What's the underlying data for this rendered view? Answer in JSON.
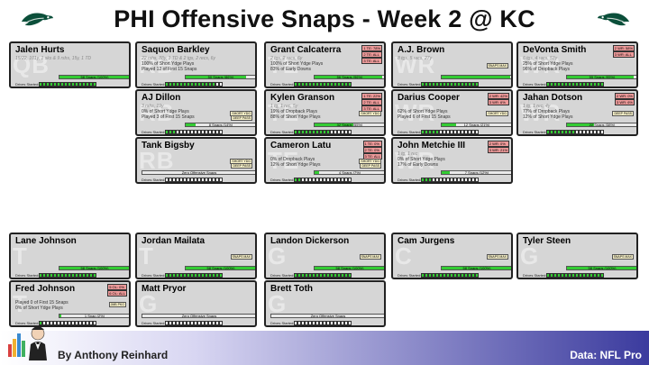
{
  "title": "PHI Offensive Snaps - Week 2 @ KC",
  "footer": {
    "author": "By Anthony Reinhard",
    "source": "Data: NFL Pro"
  },
  "colors": {
    "bar_fill": "#33cc33",
    "bar_fill_low": "#9be09b",
    "badge": "#ee9a9a",
    "card": "#d6d6d6",
    "footer_dark": "#3b3b9e"
  },
  "drives_label": "Drives Started:",
  "zero_label": "Zero Offensive Snaps",
  "players": [
    {
      "name": "Jalen Hurts",
      "pos": "QB",
      "sub": "15/22, 101y, 1 sks & 9 rshs, 15y, 1 TD",
      "stats": [],
      "snaps": "58 Snaps (100%)",
      "pct": 1.0,
      "drives_on": 16,
      "badges": [],
      "tags": []
    },
    {
      "name": "Saquon Barkley",
      "pos": "RB",
      "sub": "22 rshs, 88y, 1 TD & 2 tgs, 2 recs, 6y",
      "stats": [
        "100% of Short Ydge Plays",
        "Played 12 of First 15 Snaps"
      ],
      "snaps": "50 Snaps (86%)",
      "pct": 0.86,
      "drives_on": 14,
      "badges": [],
      "tags": []
    },
    {
      "name": "Grant Calcaterra",
      "pos": "TE",
      "sub": "2 tgs, 2 recs, 6y",
      "stats": [
        "100% of Short Ydge Plays",
        "83% of Early Downs"
      ],
      "snaps": "56 Snaps (96%)",
      "pct": 0.96,
      "drives_on": 16,
      "badges": [
        "1 TE: 78%",
        "2 TE: ALL",
        "3 TE: ALL"
      ],
      "tags": []
    },
    {
      "name": "A.J. Brown",
      "pos": "WR",
      "sub": "8 tgs, 5 recs, 27y",
      "stats": [],
      "snaps": "",
      "pct": 0.97,
      "drives_on": 16,
      "badges": [],
      "tags": [
        "SNAPS MAX"
      ]
    },
    {
      "name": "DeVonta Smith",
      "pos": "WR",
      "sub": "6 tgs, 4 recs, 53y",
      "stats": [
        "25% of Short Ydge Plays",
        "96% of Dropback Plays"
      ],
      "snaps": "55 Snaps (95%)",
      "pct": 0.95,
      "drives_on": 16,
      "badges": [
        "2 WR: 58%",
        "3 WR: ALL"
      ],
      "tags": []
    },
    {
      "name": "AJ Dillon",
      "pos": "RB",
      "sub": "3 rshs, 19y",
      "stats": [
        "0% of Short Ydge Plays",
        "Played 3 of First 15 Snaps"
      ],
      "snaps": "8 Snaps (14%)",
      "pct": 0.14,
      "drives_on": 3,
      "badges": [],
      "tags": [
        "SHORT YDG",
        "DEEP PASS"
      ]
    },
    {
      "name": "Kylen Granson",
      "pos": "TE",
      "sub": "1 tg, 1 rec, 5y",
      "stats": [
        "19% of Dropback Plays",
        "88% of Short Ydge Plays"
      ],
      "snaps": "32 Snaps (55%)",
      "pct": 0.55,
      "drives_on": 10,
      "badges": [
        "1 TE: 22%",
        "2 TE: ALL",
        "3 TE: ALL"
      ],
      "tags": [
        "SHORT YDG"
      ]
    },
    {
      "name": "Darius Cooper",
      "pos": "WR",
      "sub": "",
      "stats": [
        "62% of Short Ydge Plays",
        "Played 6 of First 15 Snaps"
      ],
      "snaps": "12 Snaps (21%)",
      "pct": 0.21,
      "drives_on": 5,
      "badges": [
        "2 WR: 42%",
        "3 WR: 6%"
      ],
      "tags": [
        "SHORT YDG"
      ]
    },
    {
      "name": "Jahan Dotson",
      "pos": "WR",
      "sub": "1 tg, 1 rec, 4y",
      "stats": [
        "77% of Dropback Plays",
        "12% of Short Ydge Plays"
      ],
      "snaps": "22 Snaps (38%)",
      "pct": 0.38,
      "drives_on": 8,
      "badges": [
        "2 WR: 0%",
        "3 WR: 6%"
      ],
      "tags": [
        "DEEP PASS"
      ]
    },
    {
      "name": "Tank Bigsby",
      "pos": "RB",
      "sub": "",
      "stats": [],
      "snaps": "Zero Offensive Snaps",
      "pct": 0.0,
      "drives_on": 0,
      "badges": [],
      "tags": [
        "SHORT YDG",
        "DEEP PASS"
      ]
    },
    {
      "name": "Cameron Latu",
      "pos": "TE",
      "sub": "",
      "stats": [
        "0% of Dropback Plays",
        "12% of Short Ydge Plays"
      ],
      "snaps": "4 Snaps (7%)",
      "pct": 0.07,
      "drives_on": 2,
      "badges": [
        "1 TE: 0%",
        "2 TE: 0%",
        "3 TE: ALL"
      ],
      "tags": [
        "SHORT YDG",
        "DEEP PASS"
      ]
    },
    {
      "name": "John Metchie III",
      "pos": "WR",
      "sub": "1 tg, 1 rec",
      "stats": [
        "0% of Short Ydge Plays",
        "17% of Early Downs"
      ],
      "snaps": "7 Snaps (12%)",
      "pct": 0.12,
      "drives_on": 3,
      "badges": [
        "2 WR: 0%",
        "3 WR: 21%"
      ],
      "tags": []
    },
    {
      "name": "Lane Johnson",
      "pos": "T",
      "sub": "",
      "stats": [],
      "snaps": "58 Snaps (100%)",
      "pct": 1.0,
      "drives_on": 16,
      "badges": [],
      "tags": []
    },
    {
      "name": "Jordan Mailata",
      "pos": "T",
      "sub": "",
      "stats": [],
      "snaps": "58 Snaps (100%)",
      "pct": 1.0,
      "drives_on": 16,
      "badges": [],
      "tags": [
        "SNAPS MAX"
      ]
    },
    {
      "name": "Landon Dickerson",
      "pos": "G",
      "sub": "",
      "stats": [],
      "snaps": "58 Snaps (100%)",
      "pct": 1.0,
      "drives_on": 16,
      "badges": [],
      "tags": [
        "SNAPS MAX"
      ]
    },
    {
      "name": "Cam Jurgens",
      "pos": "C",
      "sub": "",
      "stats": [],
      "snaps": "58 Snaps (100%)",
      "pct": 1.0,
      "drives_on": 16,
      "badges": [],
      "tags": [
        "SNAPS MAX"
      ]
    },
    {
      "name": "Tyler Steen",
      "pos": "G",
      "sub": "",
      "stats": [],
      "snaps": "58 Snaps (100%)",
      "pct": 1.0,
      "drives_on": 16,
      "badges": [],
      "tags": [
        "SNAPS MAX"
      ]
    },
    {
      "name": "Fred Johnson",
      "pos": "T",
      "sub": "",
      "stats": [
        "Played 0 of First 15 Snaps",
        "0% of Short Ydge Plays"
      ],
      "snaps": "1 Snap (2%)",
      "pct": 0.02,
      "drives_on": 1,
      "badges": [
        "5 OL: 0%",
        "6 OL: ALL"
      ],
      "tags": [
        "JMB PKG"
      ]
    },
    {
      "name": "Matt Pryor",
      "pos": "G",
      "sub": "",
      "stats": [],
      "snaps": "Zero Offensive Snaps",
      "pct": 0.0,
      "drives_on": 0,
      "badges": [],
      "tags": []
    },
    {
      "name": "Brett Toth",
      "pos": "G",
      "sub": "",
      "stats": [],
      "snaps": "Zero Offensive Snaps",
      "pct": 0.0,
      "drives_on": 0,
      "badges": [],
      "tags": []
    }
  ]
}
